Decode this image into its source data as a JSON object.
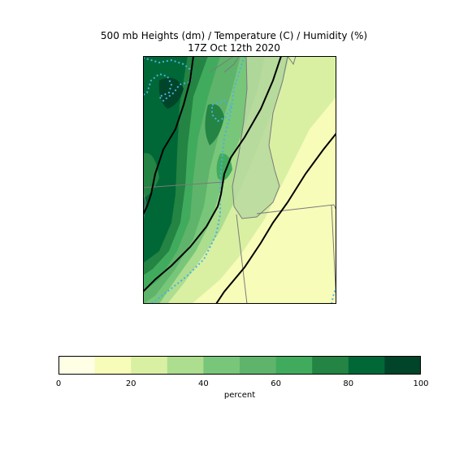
{
  "title": {
    "line1": "500 mb Heights (dm) / Temperature (C) / Humidity (%)",
    "line2": "17Z Oct 12th 2020"
  },
  "colorbar": {
    "label": "percent",
    "ticks": [
      "0",
      "20",
      "40",
      "60",
      "80",
      "100"
    ],
    "colors": [
      "#ffffe5",
      "#f7fcb9",
      "#d9f0a3",
      "#addd8e",
      "#78c679",
      "#5fb46b",
      "#41ab5d",
      "#238443",
      "#006837",
      "#004529"
    ],
    "bounds": [
      0,
      10,
      20,
      30,
      40,
      50,
      60,
      70,
      80,
      90,
      100
    ]
  },
  "map": {
    "height_contour_color": "#000000",
    "temperature_contour_color": "#4ab0e0",
    "border_color": "#7a7a7a",
    "lake_color": "#b9d9a0"
  }
}
